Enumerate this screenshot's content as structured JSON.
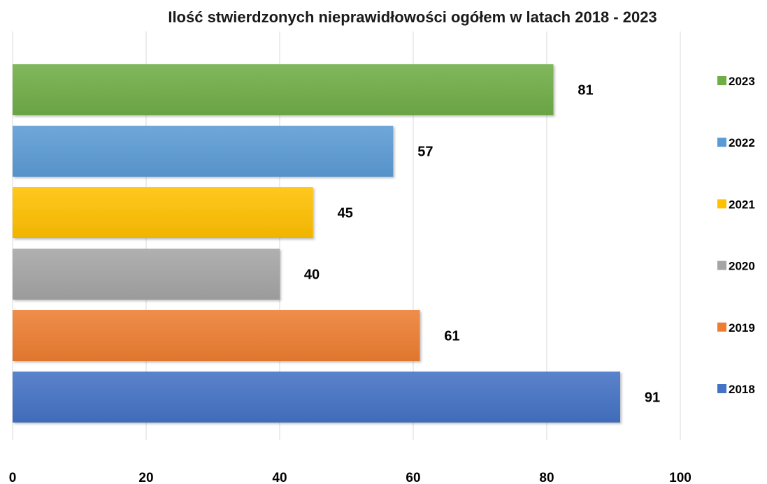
{
  "chart_data": {
    "type": "bar",
    "orientation": "horizontal",
    "title": "Ilość stwierdzonych nieprawidłowości ogółem w latach 2018 - 2023",
    "xlabel": "",
    "ylabel": "",
    "xlim": [
      0,
      100
    ],
    "x_ticks": [
      0,
      20,
      40,
      60,
      80,
      100
    ],
    "grid": true,
    "legend_position": "right",
    "series": [
      {
        "name": "2023",
        "value": 81,
        "color": "#70ad47"
      },
      {
        "name": "2022",
        "value": 57,
        "color": "#5b9bd5"
      },
      {
        "name": "2021",
        "value": 45,
        "color": "#ffc000"
      },
      {
        "name": "2020",
        "value": 40,
        "color": "#a5a5a5"
      },
      {
        "name": "2019",
        "value": 61,
        "color": "#ed7d31"
      },
      {
        "name": "2018",
        "value": 91,
        "color": "#4472c4"
      }
    ]
  }
}
